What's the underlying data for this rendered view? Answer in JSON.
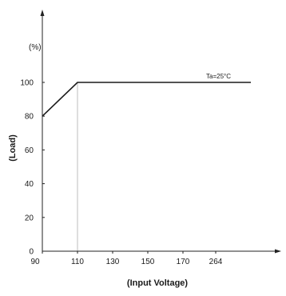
{
  "chart_data": {
    "type": "line",
    "title": "",
    "xlabel": "(Input Voltage)",
    "ylabel": "(Load)",
    "yunit": "(%)",
    "annotation": "Ta=25°C",
    "x_tick_labels": [
      "90",
      "110",
      "130",
      "150",
      "170",
      "264"
    ],
    "y_ticks": [
      0,
      20,
      40,
      60,
      80,
      100
    ],
    "ylim": [
      0,
      120
    ],
    "grid": false,
    "legend": "none",
    "series": [
      {
        "points": [
          {
            "x": "90",
            "y": 80
          },
          {
            "x": "110",
            "y": 100
          },
          {
            "x": "264",
            "y": 100
          }
        ]
      }
    ],
    "reference_lines": [
      {
        "x": "110",
        "color": "#c8c8c8"
      }
    ]
  }
}
